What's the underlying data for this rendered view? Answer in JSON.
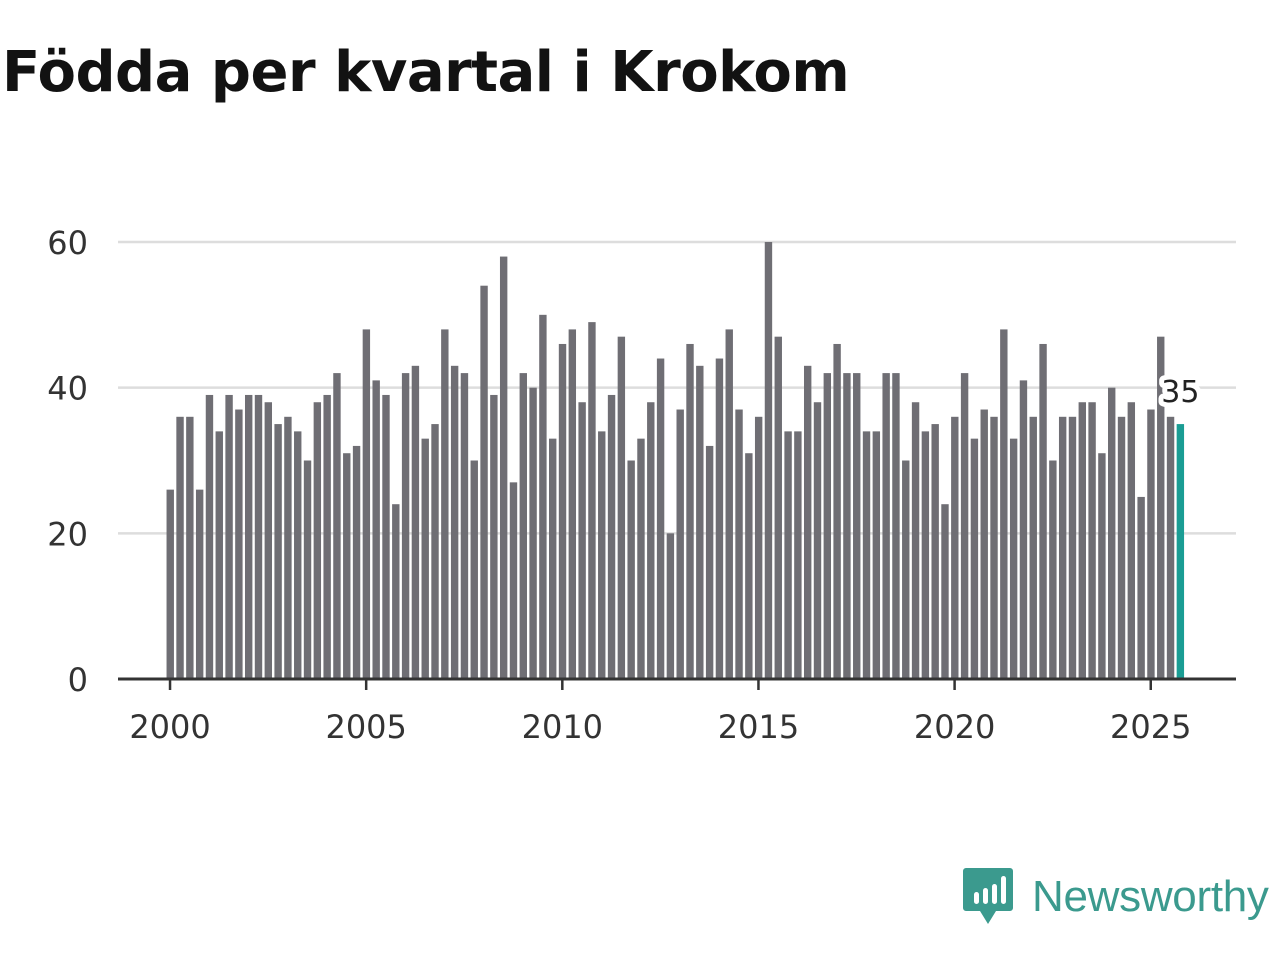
{
  "title": "Födda per kvartal i Krokom",
  "brand": {
    "name": "Newsworthy",
    "color": "#3b9a8e"
  },
  "colors": {
    "bar": "#6f6e74",
    "highlight": "#1a9d94",
    "grid": "#dddddd",
    "axis": "#333333"
  },
  "chart_data": {
    "type": "bar",
    "title": "Födda per kvartal i Krokom",
    "xlabel": "",
    "ylabel": "",
    "ylim": [
      0,
      60
    ],
    "xlim": [
      1998.75,
      2027.25
    ],
    "y_ticks": [
      "0",
      "20",
      "40",
      "60"
    ],
    "x_ticks": [
      "2000",
      "2005",
      "2010",
      "2015",
      "2020",
      "2025"
    ],
    "grid": true,
    "start_year": 2000,
    "start_quarter": 1,
    "values": [
      26,
      36,
      36,
      26,
      39,
      34,
      39,
      37,
      39,
      39,
      38,
      35,
      36,
      34,
      30,
      38,
      39,
      42,
      31,
      32,
      48,
      41,
      39,
      24,
      42,
      43,
      33,
      35,
      48,
      43,
      42,
      30,
      54,
      39,
      58,
      27,
      42,
      40,
      50,
      33,
      46,
      48,
      38,
      49,
      34,
      39,
      47,
      30,
      33,
      38,
      44,
      20,
      37,
      46,
      43,
      32,
      44,
      48,
      37,
      31,
      36,
      60,
      47,
      34,
      34,
      43,
      38,
      42,
      46,
      42,
      42,
      34,
      34,
      42,
      42,
      30,
      38,
      34,
      35,
      24,
      36,
      42,
      33,
      37,
      36,
      48,
      33,
      41,
      36,
      46,
      30,
      36,
      36,
      38,
      38,
      31,
      40,
      36,
      38,
      25,
      37,
      47,
      36,
      35
    ],
    "highlight": {
      "index": 103,
      "label": "35"
    }
  }
}
